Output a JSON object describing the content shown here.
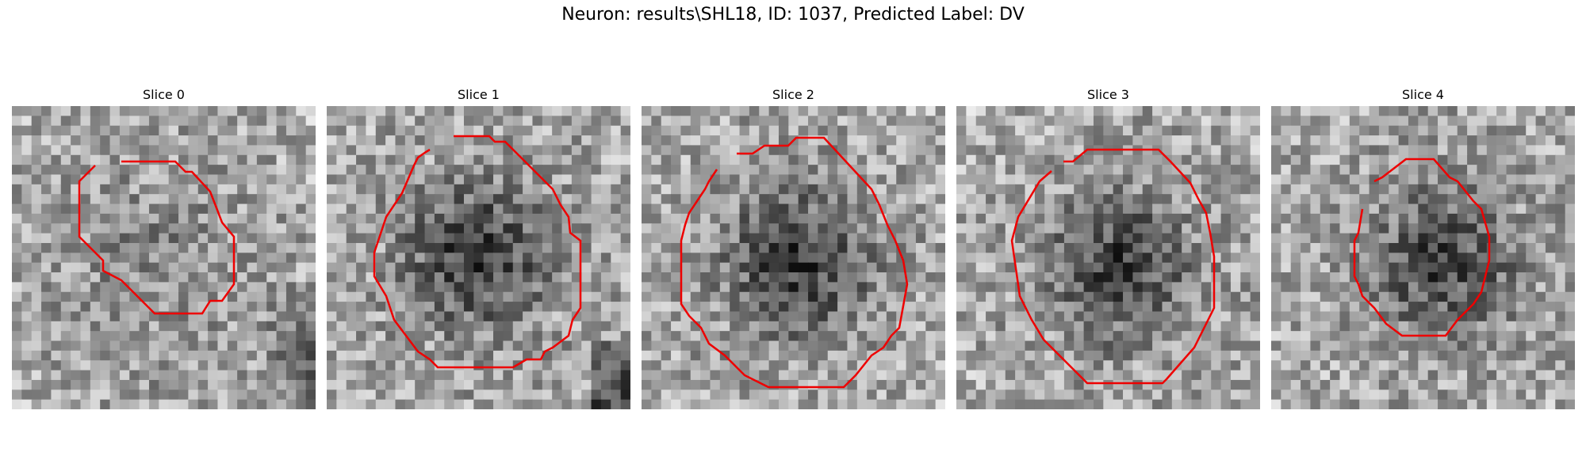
{
  "figure": {
    "title": "Neuron: results\\SHL18, ID: 1037, Predicted Label: DV",
    "contour_color": "#ee0000"
  },
  "slices": [
    {
      "label": "Slice 0",
      "seed": 11,
      "dark_center": [
        0.45,
        0.5
      ],
      "dark_strength": 0.1
    },
    {
      "label": "Slice 1",
      "seed": 23,
      "dark_center": [
        0.48,
        0.48
      ],
      "dark_strength": 0.45
    },
    {
      "label": "Slice 2",
      "seed": 37,
      "dark_center": [
        0.5,
        0.5
      ],
      "dark_strength": 0.45
    },
    {
      "label": "Slice 3",
      "seed": 41,
      "dark_center": [
        0.52,
        0.52
      ],
      "dark_strength": 0.42
    },
    {
      "label": "Slice 4",
      "seed": 59,
      "dark_center": [
        0.55,
        0.5
      ],
      "dark_strength": 0.4
    }
  ]
}
